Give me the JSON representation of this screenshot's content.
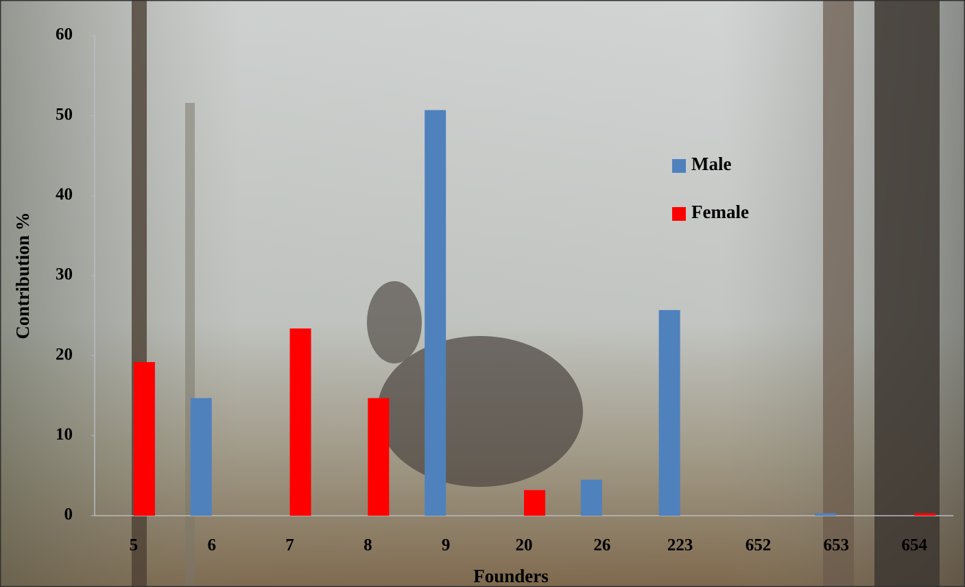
{
  "chart_data": {
    "type": "bar",
    "x_label": "Founders",
    "y_label": "Contribution %",
    "categories": [
      "5",
      "6",
      "7",
      "8",
      "9",
      "20",
      "26",
      "223",
      "652",
      "653",
      "654"
    ],
    "series": [
      {
        "name": "Male",
        "color": "#4f81bd",
        "values": [
          0,
          14.7,
          0,
          0,
          50.7,
          0,
          4.5,
          25.7,
          0,
          0.3,
          0
        ]
      },
      {
        "name": "Female",
        "color": "#ff0000",
        "values": [
          19.2,
          0,
          23.4,
          14.7,
          0,
          3.2,
          0,
          0,
          0,
          0,
          0.3
        ]
      }
    ],
    "ylim": [
      0,
      60
    ],
    "yticks": [
      0,
      10,
      20,
      30,
      40,
      50,
      60
    ],
    "grid": false,
    "legend": "right"
  }
}
